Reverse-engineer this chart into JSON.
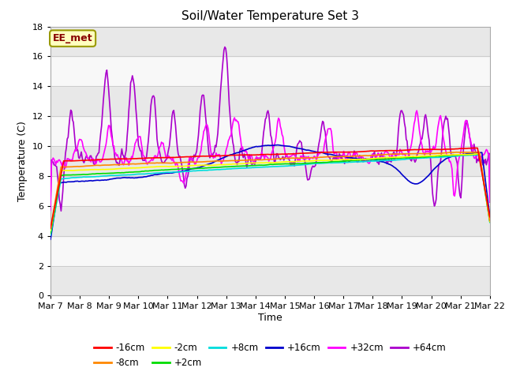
{
  "title": "Soil/Water Temperature Set 3",
  "xlabel": "Time",
  "ylabel": "Temperature (C)",
  "ylim": [
    0,
    18
  ],
  "yticks": [
    0,
    2,
    4,
    6,
    8,
    10,
    12,
    14,
    16,
    18
  ],
  "x_labels": [
    "Mar 7",
    "Mar 8",
    "Mar 9",
    "Mar 10",
    "Mar 11",
    "Mar 12",
    "Mar 13",
    "Mar 14",
    "Mar 15",
    "Mar 16",
    "Mar 17",
    "Mar 18",
    "Mar 19",
    "Mar 20",
    "Mar 21",
    "Mar 22"
  ],
  "annotation_text": "EE_met",
  "annotation_bg": "#ffffc0",
  "annotation_border": "#999900",
  "annotation_text_color": "#880000",
  "series": {
    "-16cm": {
      "color": "#ff0000"
    },
    "-8cm": {
      "color": "#ff8800"
    },
    "-2cm": {
      "color": "#ffff00"
    },
    "+2cm": {
      "color": "#00dd00"
    },
    "+8cm": {
      "color": "#00dddd"
    },
    "+16cm": {
      "color": "#0000cc"
    },
    "+32cm": {
      "color": "#ff00ff"
    },
    "+64cm": {
      "color": "#aa00cc"
    }
  },
  "band_colors": [
    "#ffffff",
    "#e8e8e8"
  ],
  "fig_bg": "#ffffff"
}
